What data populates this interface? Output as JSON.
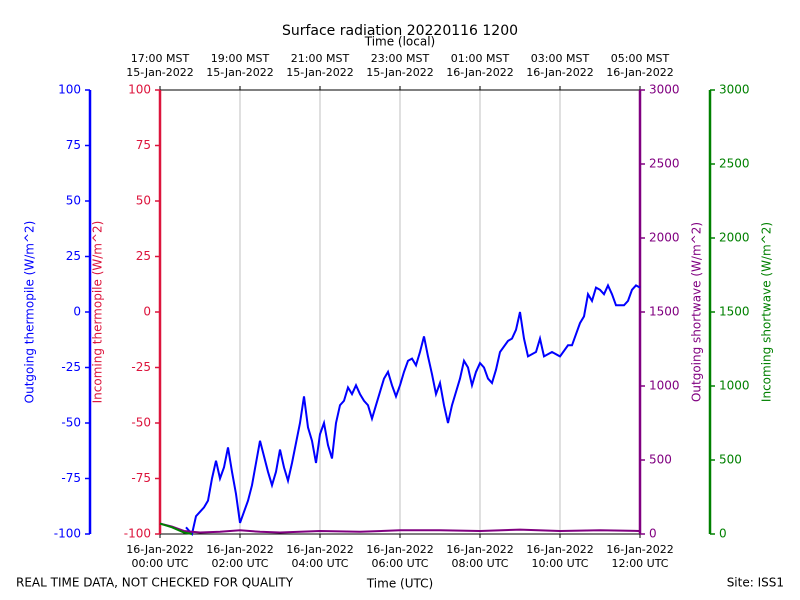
{
  "chart_data": {
    "type": "line",
    "title": "Surface radiation 20220116 1200",
    "x_label": "Time (UTC)",
    "x2_label": "Time (local)",
    "footer_left": "REAL TIME DATA, NOT CHECKED FOR QUALITY",
    "footer_right": "Site: ISS1",
    "xlim": [
      0,
      12
    ],
    "xticks": [
      {
        "value": 0,
        "label": "16-Jan-2022\n00:00 UTC"
      },
      {
        "value": 2,
        "label": "16-Jan-2022\n02:00 UTC"
      },
      {
        "value": 4,
        "label": "16-Jan-2022\n04:00 UTC"
      },
      {
        "value": 6,
        "label": "16-Jan-2022\n06:00 UTC"
      },
      {
        "value": 8,
        "label": "16-Jan-2022\n08:00 UTC"
      },
      {
        "value": 10,
        "label": "16-Jan-2022\n10:00 UTC"
      },
      {
        "value": 12,
        "label": "16-Jan-2022\n12:00 UTC"
      }
    ],
    "x2ticks": [
      {
        "value": 0,
        "label": "17:00 MST\n15-Jan-2022"
      },
      {
        "value": 2,
        "label": "19:00 MST\n15-Jan-2022"
      },
      {
        "value": 4,
        "label": "21:00 MST\n15-Jan-2022"
      },
      {
        "value": 6,
        "label": "23:00 MST\n15-Jan-2022"
      },
      {
        "value": 8,
        "label": "01:00 MST\n16-Jan-2022"
      },
      {
        "value": 10,
        "label": "03:00 MST\n16-Jan-2022"
      },
      {
        "value": 12,
        "label": "05:00 MST\n16-Jan-2022"
      }
    ],
    "grid": true,
    "y_label": "Outgoing thermopile (W/m^2)",
    "y_color": "#0000ff",
    "ylim": [
      -100,
      100
    ],
    "yticks": [
      -100,
      -75,
      -50,
      -25,
      0,
      25,
      50,
      75,
      100
    ],
    "y2_label": "Incoming thermopile (W/m^2)",
    "y2_color": "#dc143c",
    "y2lim": [
      -100,
      100
    ],
    "y2ticks": [
      -100,
      -75,
      -50,
      -25,
      0,
      25,
      50,
      75,
      100
    ],
    "y3_label": "Outgoing shortwave (W/m^2)",
    "y3_color": "#800080",
    "y3lim": [
      0,
      3000
    ],
    "y3ticks": [
      0,
      500,
      1000,
      1500,
      2000,
      2500,
      3000
    ],
    "y4_label": "Incoming shortwave (W/m^2)",
    "y4_color": "#008000",
    "y4lim": [
      0,
      3000
    ],
    "y4ticks": [
      0,
      500,
      1000,
      1500,
      2000,
      2500,
      3000
    ],
    "series": [
      {
        "name": "Outgoing thermopile",
        "color": "#0000ff",
        "axis": "y",
        "x": [
          0.65,
          0.8,
          0.9,
          1.0,
          1.1,
          1.2,
          1.3,
          1.4,
          1.5,
          1.6,
          1.7,
          1.8,
          1.9,
          2.0,
          2.1,
          2.2,
          2.3,
          2.4,
          2.5,
          2.6,
          2.7,
          2.8,
          2.9,
          3.0,
          3.1,
          3.2,
          3.3,
          3.5,
          3.6,
          3.7,
          3.8,
          3.9,
          4.0,
          4.1,
          4.2,
          4.3,
          4.4,
          4.5,
          4.6,
          4.7,
          4.8,
          4.9,
          5.0,
          5.1,
          5.2,
          5.3,
          5.4,
          5.6,
          5.7,
          5.8,
          5.9,
          6.0,
          6.1,
          6.2,
          6.3,
          6.4,
          6.5,
          6.6,
          6.7,
          6.8,
          6.9,
          7.0,
          7.1,
          7.2,
          7.3,
          7.5,
          7.6,
          7.7,
          7.8,
          7.9,
          8.0,
          8.1,
          8.2,
          8.3,
          8.4,
          8.5,
          8.7,
          8.8,
          8.9,
          9.0,
          9.1,
          9.2,
          9.4,
          9.5,
          9.6,
          9.8,
          10.0,
          10.2,
          10.3,
          10.4,
          10.5,
          10.6,
          10.7,
          10.8,
          10.9,
          11.0,
          11.1,
          11.2,
          11.3,
          11.4,
          11.6,
          11.7,
          11.8,
          11.9,
          12.0
        ],
        "values": [
          -97,
          -100,
          -92,
          -90,
          -88,
          -85,
          -75,
          -67,
          -75,
          -70,
          -61,
          -72,
          -82,
          -95,
          -90,
          -85,
          -78,
          -68,
          -58,
          -65,
          -72,
          -78,
          -72,
          -62,
          -70,
          -76,
          -68,
          -50,
          -38,
          -52,
          -58,
          -68,
          -55,
          -50,
          -60,
          -66,
          -50,
          -42,
          -40,
          -34,
          -37,
          -33,
          -37,
          -40,
          -42,
          -48,
          -42,
          -30,
          -27,
          -33,
          -38,
          -33,
          -27,
          -22,
          -21,
          -24,
          -18,
          -11,
          -20,
          -28,
          -37,
          -32,
          -42,
          -50,
          -42,
          -30,
          -22,
          -25,
          -33,
          -27,
          -23,
          -25,
          -30,
          -32,
          -26,
          -18,
          -13,
          -12,
          -8,
          0,
          -12,
          -20,
          -18,
          -12,
          -20,
          -18,
          -20,
          -15,
          -15,
          -10,
          -5,
          -2,
          8,
          5,
          11,
          10,
          8,
          12,
          8,
          3,
          3,
          5,
          10,
          12,
          11
        ]
      },
      {
        "name": "Outgoing shortwave",
        "color": "#800080",
        "axis": "y3",
        "x": [
          0,
          0.3,
          0.6,
          1,
          1.5,
          2,
          2.5,
          3,
          4,
          5,
          6,
          7,
          8,
          9,
          10,
          11,
          12
        ],
        "values": [
          70,
          50,
          20,
          10,
          15,
          25,
          15,
          10,
          20,
          15,
          25,
          25,
          20,
          30,
          20,
          25,
          20
        ]
      },
      {
        "name": "Incoming shortwave",
        "color": "#008000",
        "axis": "y4",
        "x": [
          0,
          0.3,
          0.6,
          0.8
        ],
        "values": [
          70,
          45,
          10,
          0
        ]
      }
    ]
  }
}
